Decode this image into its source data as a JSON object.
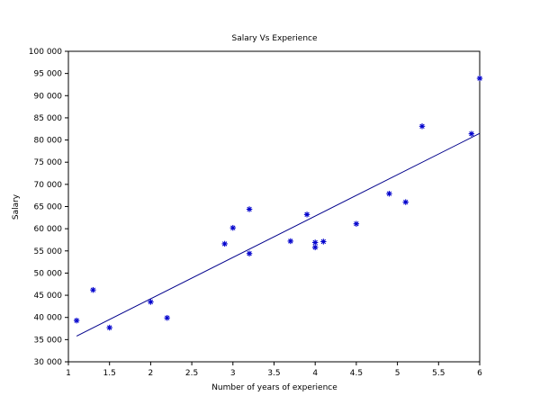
{
  "chart_data": {
    "type": "scatter",
    "title": "Salary Vs Experience",
    "xlabel": "Number of years of experience",
    "ylabel": "Salary",
    "xlim": [
      1,
      6
    ],
    "ylim": [
      30000,
      100000
    ],
    "x_ticks": [
      1,
      1.5,
      2,
      2.5,
      3,
      3.5,
      4,
      4.5,
      5,
      5.5,
      6
    ],
    "x_tick_labels": [
      "1",
      "1.5",
      "2",
      "2.5",
      "3",
      "3.5",
      "4",
      "4.5",
      "5",
      "5.5",
      "6"
    ],
    "y_ticks": [
      30000,
      35000,
      40000,
      45000,
      50000,
      55000,
      60000,
      65000,
      70000,
      75000,
      80000,
      85000,
      90000,
      95000,
      100000
    ],
    "y_tick_labels": [
      "30 000",
      "35 000",
      "40 000",
      "45 000",
      "50 000",
      "55 000",
      "60 000",
      "65 000",
      "70 000",
      "75 000",
      "80 000",
      "85 000",
      "90 000",
      "95 000",
      "100 000"
    ],
    "grid": false,
    "series": [
      {
        "kind": "scatter",
        "marker": "*",
        "color": "#0000cc",
        "points": [
          [
            1.1,
            39300
          ],
          [
            1.3,
            46200
          ],
          [
            1.5,
            37700
          ],
          [
            2.0,
            43500
          ],
          [
            2.2,
            39900
          ],
          [
            2.9,
            56600
          ],
          [
            3.0,
            60200
          ],
          [
            3.2,
            54400
          ],
          [
            3.2,
            64400
          ],
          [
            3.7,
            57200
          ],
          [
            3.9,
            63200
          ],
          [
            4.0,
            55800
          ],
          [
            4.0,
            56900
          ],
          [
            4.1,
            57100
          ],
          [
            4.5,
            61100
          ],
          [
            4.9,
            67900
          ],
          [
            5.1,
            66000
          ],
          [
            5.3,
            83100
          ],
          [
            5.9,
            81400
          ],
          [
            6.0,
            93900
          ]
        ]
      },
      {
        "kind": "line",
        "color": "#00008b",
        "points": [
          [
            1.1,
            35800
          ],
          [
            6.0,
            81500
          ]
        ]
      }
    ]
  }
}
